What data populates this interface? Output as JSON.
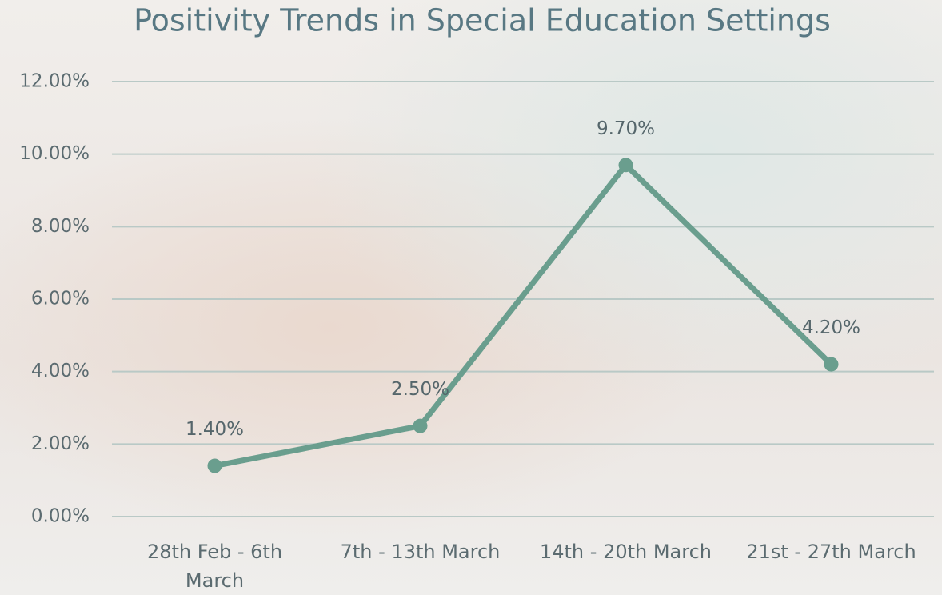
{
  "chart_data": {
    "type": "line",
    "title": "Positivity Trends in Special Education Settings",
    "categories": [
      "28th Feb - 6th March",
      "7th - 13th March",
      "14th - 20th March",
      "21st - 27th March"
    ],
    "values": [
      1.4,
      2.5,
      9.7,
      4.2
    ],
    "value_labels": [
      "1.40%",
      "2.50%",
      "9.70%",
      "4.20%"
    ],
    "color": "#6a9e8e",
    "ylim": [
      0,
      12
    ],
    "yticks": [
      {
        "value": 0,
        "label": "0.00%"
      },
      {
        "value": 2,
        "label": "2.00%"
      },
      {
        "value": 4,
        "label": "4.00%"
      },
      {
        "value": 6,
        "label": "6.00%"
      },
      {
        "value": 8,
        "label": "8.00%"
      },
      {
        "value": 10,
        "label": "10.00%"
      },
      {
        "value": 12,
        "label": "12.00%"
      }
    ],
    "grid": true
  }
}
